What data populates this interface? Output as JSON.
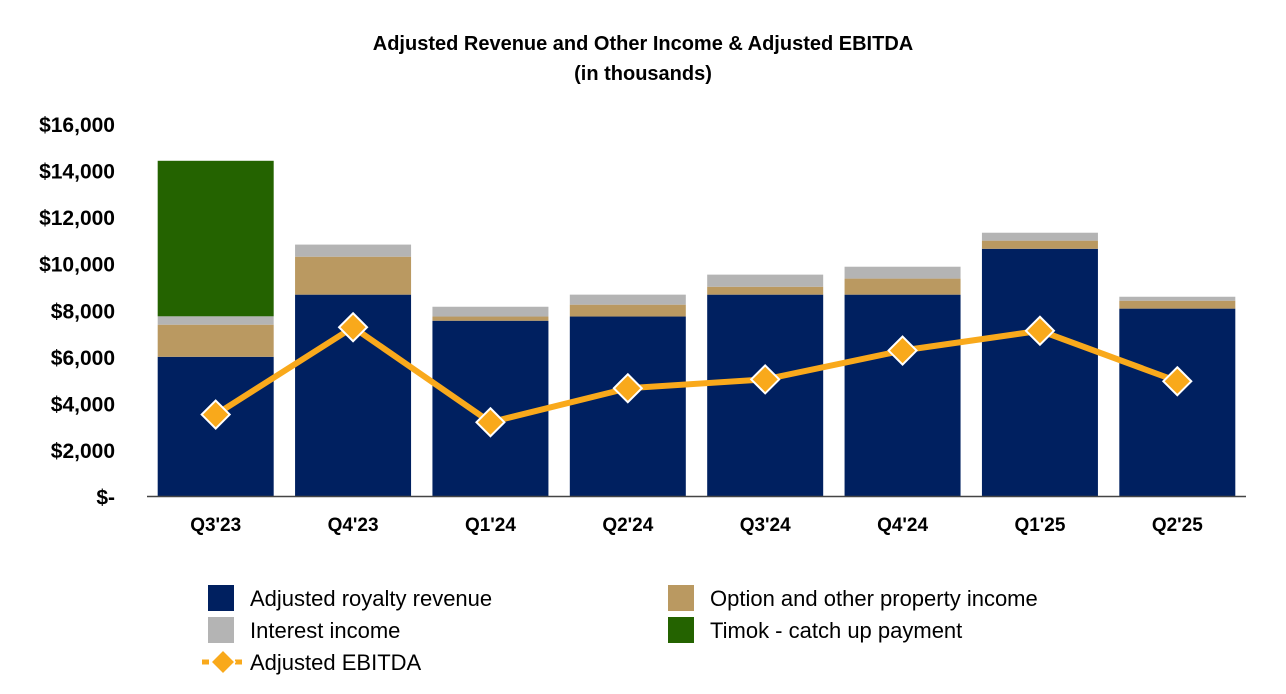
{
  "chart_data": {
    "type": "bar",
    "stacked": true,
    "title": "Adjusted Revenue and Other Income & Adjusted EBITDA",
    "subtitle": "(in thousands)",
    "xlabel": "",
    "ylabel": "",
    "ylim": [
      0,
      16000
    ],
    "yticks": [
      0,
      2000,
      4000,
      6000,
      8000,
      10000,
      12000,
      14000,
      16000
    ],
    "ytick_labels": [
      "$-",
      "$2,000",
      "$4,000",
      "$6,000",
      "$8,000",
      "$10,000",
      "$12,000",
      "$14,000",
      "$16,000"
    ],
    "grid": false,
    "legend_position": "bottom",
    "categories": [
      "Q3'23",
      "Q4'23",
      "Q1'24",
      "Q2'24",
      "Q3'24",
      "Q4'24",
      "Q1'25",
      "Q2'25"
    ],
    "series": [
      {
        "name": "Adjusted royalty revenue",
        "type": "bar",
        "color": "#002060",
        "values": [
          6000,
          8670,
          7550,
          7730,
          8670,
          8670,
          10640,
          8070
        ]
      },
      {
        "name": "Option and other property income",
        "type": "bar",
        "color": "#BA9961",
        "values": [
          1380,
          1630,
          180,
          510,
          340,
          690,
          350,
          340
        ]
      },
      {
        "name": "Interest income",
        "type": "bar",
        "color": "#B4B4B4",
        "values": [
          360,
          520,
          420,
          430,
          520,
          510,
          340,
          170
        ]
      },
      {
        "name": "Timok - catch up payment",
        "type": "bar",
        "color": "#246300",
        "values": [
          6680,
          0,
          0,
          0,
          0,
          0,
          0,
          0
        ]
      },
      {
        "name": "Adjusted EBITDA",
        "type": "line",
        "marker": "diamond",
        "color": "#F9A91B",
        "values": [
          3520,
          7270,
          3190,
          4650,
          5030,
          6270,
          7120,
          4950
        ]
      }
    ]
  }
}
